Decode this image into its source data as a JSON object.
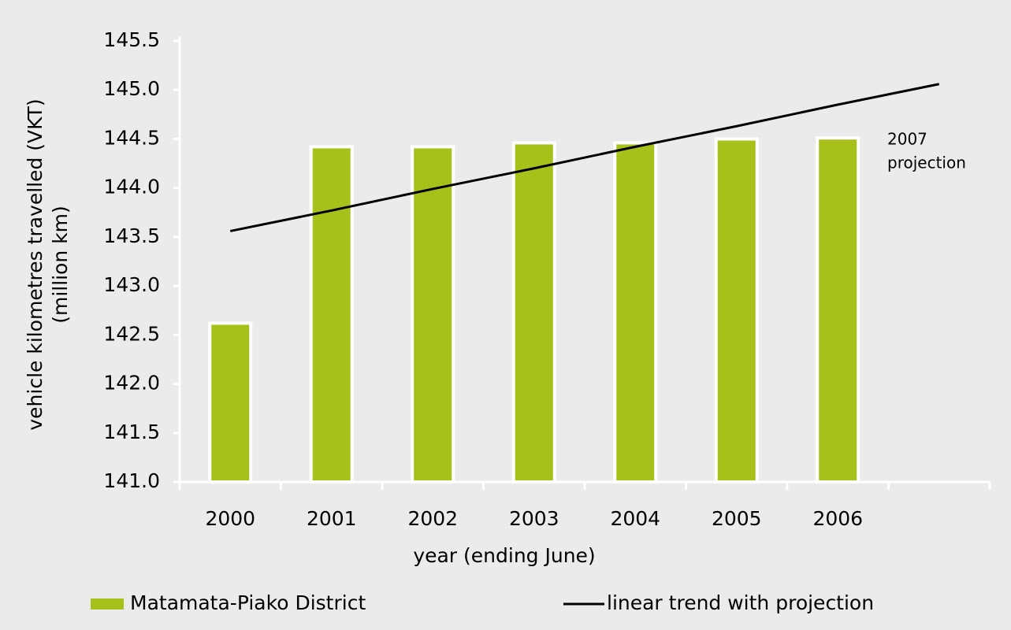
{
  "chart_data": {
    "type": "bar",
    "ylabel": [
      "vehicle kilometres travelled (VKT)",
      "(million km)"
    ],
    "xlabel": "year (ending June)",
    "categories": [
      "2000",
      "2001",
      "2002",
      "2003",
      "2004",
      "2005",
      "2006",
      null
    ],
    "series": [
      {
        "name": "Matamata-Piako District",
        "type": "bar",
        "color": "#a8c01a",
        "values": [
          142.62,
          144.42,
          144.42,
          144.46,
          144.46,
          144.5,
          144.51,
          null
        ]
      },
      {
        "name": "linear trend with projection",
        "type": "line",
        "color": "#000000",
        "values": [
          143.56,
          143.77,
          143.99,
          144.2,
          144.42,
          144.63,
          144.85,
          145.06
        ]
      }
    ],
    "annotation": [
      "2007",
      "projection"
    ],
    "ylim": [
      141,
      145.5
    ],
    "yticks": [
      {
        "value": 141,
        "label": "141.0"
      },
      141.5,
      {
        "value": 142,
        "label": "142.0"
      },
      142.5,
      {
        "value": 143,
        "label": "143.0"
      },
      143.5,
      {
        "value": 144,
        "label": "144.0"
      },
      144.5,
      {
        "value": 145,
        "label": "145.0"
      },
      145.5
    ],
    "legend": "bottom"
  }
}
